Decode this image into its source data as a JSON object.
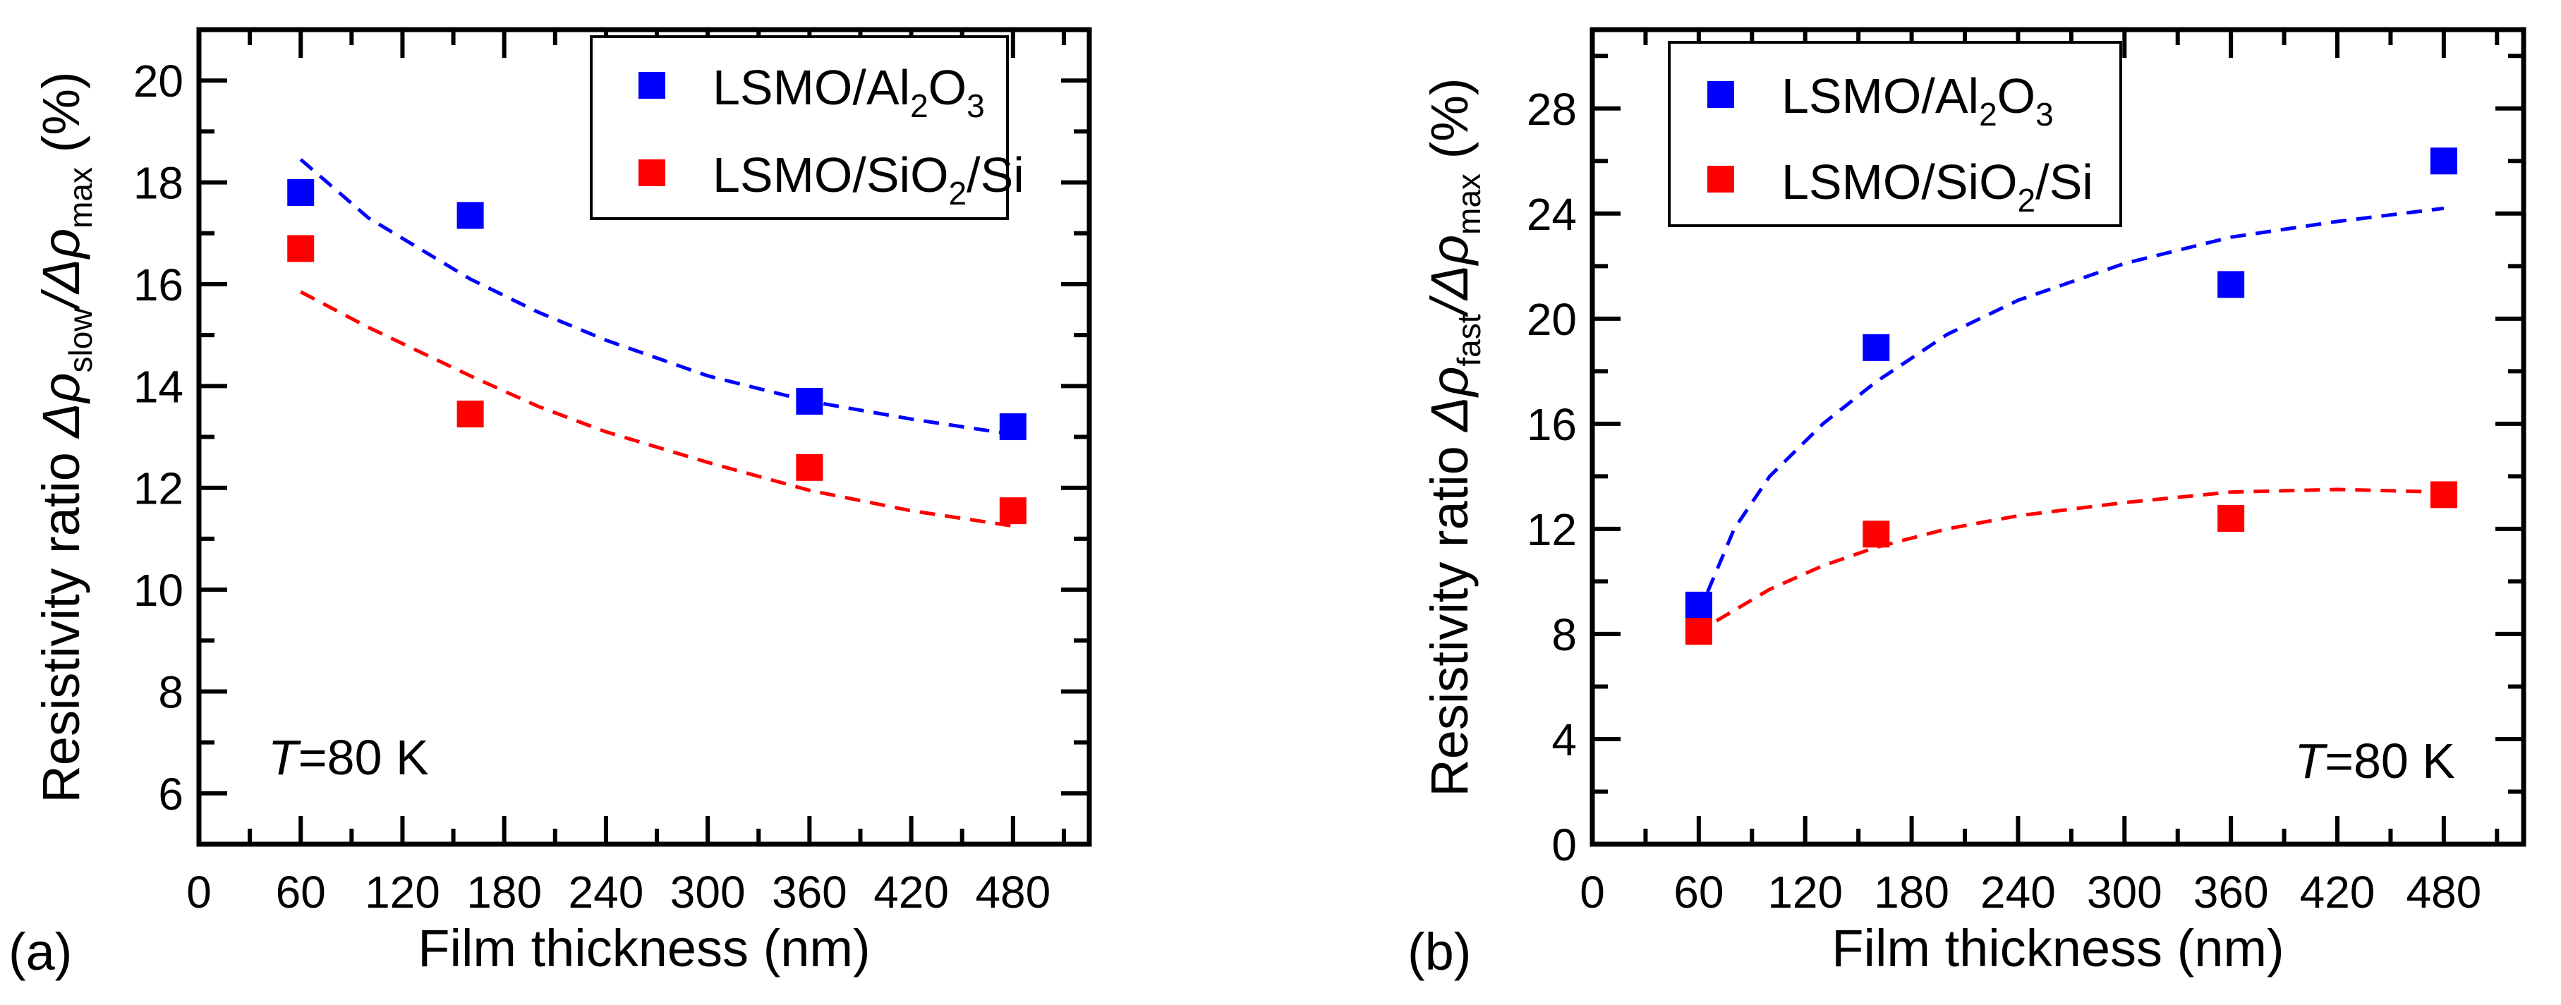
{
  "chart_data": [
    {
      "type": "scatter",
      "panel_label": "(a)",
      "xlabel": "Film thickness (nm)",
      "ylabel": {
        "prefix": "Resistivity ratio ",
        "delta_rho": "Δρ",
        "sub1": "slow",
        "slash": "/Δρ",
        "sub2": "max",
        "unit": " (%)"
      },
      "xlim": [
        0,
        525
      ],
      "ylim": [
        5,
        21
      ],
      "xticks": [
        0,
        60,
        120,
        180,
        240,
        300,
        360,
        420,
        480
      ],
      "yticks": [
        6,
        8,
        10,
        12,
        14,
        16,
        18,
        20
      ],
      "xminor": 30,
      "yminor": 1,
      "annotation": {
        "italic": "T",
        "rest": "=80 K",
        "position": "bottom-left"
      },
      "legend": {
        "position": "top-right"
      },
      "series": [
        {
          "name": "LSMO/Al2O3",
          "legend": {
            "a": "LSMO/Al",
            "b": "2",
            "c": "O",
            "d": "3"
          },
          "color": "#0000ff",
          "x": [
            60,
            160,
            360,
            480
          ],
          "y": [
            17.8,
            17.35,
            13.7,
            13.2
          ],
          "fit": {
            "x": [
              60,
              100,
              160,
              200,
              240,
              300,
              360,
              420,
              480
            ],
            "y": [
              18.45,
              17.3,
              16.1,
              15.45,
              14.9,
              14.2,
              13.7,
              13.35,
              13.05
            ]
          }
        },
        {
          "name": "LSMO/SiO2/Si",
          "legend": {
            "a": "LSMO/SiO",
            "b": "2",
            "c": "/Si",
            "d": ""
          },
          "color": "#ff0000",
          "x": [
            60,
            160,
            360,
            480
          ],
          "y": [
            16.7,
            13.45,
            12.4,
            11.55
          ],
          "fit": {
            "x": [
              60,
              100,
              160,
              200,
              240,
              300,
              360,
              420,
              480
            ],
            "y": [
              15.85,
              15.15,
              14.2,
              13.6,
              13.1,
              12.5,
              11.95,
              11.55,
              11.25
            ]
          }
        }
      ]
    },
    {
      "type": "scatter",
      "panel_label": "(b)",
      "xlabel": "Film thickness (nm)",
      "ylabel": {
        "prefix": "Resistivity ratio ",
        "delta_rho": "Δρ",
        "sub1": "fast",
        "slash": "/Δρ",
        "sub2": "max",
        "unit": " (%)"
      },
      "xlim": [
        0,
        525
      ],
      "ylim": [
        0,
        31
      ],
      "xticks": [
        0,
        60,
        120,
        180,
        240,
        300,
        360,
        420,
        480
      ],
      "yticks": [
        0,
        4,
        8,
        12,
        16,
        20,
        24,
        28
      ],
      "xminor": 30,
      "yminor": 2,
      "annotation": {
        "italic": "T",
        "rest": "=80 K",
        "position": "bottom-right"
      },
      "legend": {
        "position": "top-left"
      },
      "series": [
        {
          "name": "LSMO/Al2O3",
          "legend": {
            "a": "LSMO/Al",
            "b": "2",
            "c": "O",
            "d": "3"
          },
          "color": "#0000ff",
          "x": [
            60,
            160,
            360,
            480
          ],
          "y": [
            9.1,
            18.9,
            21.3,
            26.0
          ],
          "fit": {
            "x": [
              65,
              80,
              100,
              130,
              160,
              200,
              240,
              300,
              360,
              420,
              480
            ],
            "y": [
              9.6,
              12.0,
              14.0,
              16.0,
              17.6,
              19.4,
              20.7,
              22.1,
              23.1,
              23.7,
              24.2
            ]
          }
        },
        {
          "name": "LSMO/SiO2/Si",
          "legend": {
            "a": "LSMO/SiO",
            "b": "2",
            "c": "/Si",
            "d": ""
          },
          "color": "#ff0000",
          "x": [
            60,
            160,
            360,
            480
          ],
          "y": [
            8.1,
            11.8,
            12.4,
            13.3
          ],
          "fit": {
            "x": [
              70,
              100,
              130,
              160,
              200,
              240,
              300,
              360,
              420,
              480
            ],
            "y": [
              8.5,
              9.7,
              10.6,
              11.3,
              12.0,
              12.5,
              13.0,
              13.4,
              13.5,
              13.4
            ]
          }
        }
      ]
    }
  ]
}
